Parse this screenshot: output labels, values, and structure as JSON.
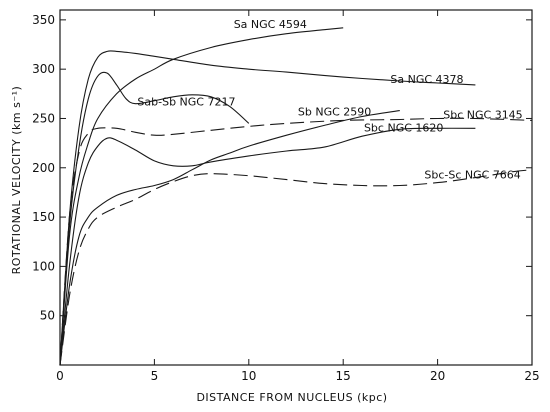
{
  "chart_data": {
    "type": "line",
    "title": "",
    "xlabel": "DISTANCE FROM NUCLEUS (kpc)",
    "ylabel": "ROTATIONAL VELOCITY (km s⁻¹)",
    "xlim": [
      0,
      25
    ],
    "ylim": [
      0,
      360
    ],
    "xticks": [
      0,
      5,
      10,
      15,
      20,
      25
    ],
    "yticks": [
      50,
      100,
      150,
      200,
      250,
      300,
      350
    ],
    "grid": false,
    "legend": "none",
    "series": [
      {
        "name": "Sa NGC 4594",
        "dashed": false,
        "label_text": "Sa NGC 4594",
        "label_at": [
          9.2,
          342
        ],
        "x": [
          0,
          0.5,
          1,
          1.5,
          2,
          3,
          4,
          5,
          6,
          8,
          10,
          12,
          14,
          15
        ],
        "y": [
          0,
          130,
          190,
          225,
          250,
          275,
          290,
          300,
          310,
          322,
          330,
          336,
          340,
          342
        ]
      },
      {
        "name": "Sa NGC 4378",
        "dashed": false,
        "label_text": "Sa NGC 4378",
        "label_at": [
          17.5,
          286
        ],
        "x": [
          0,
          0.5,
          1,
          1.5,
          2,
          2.5,
          3,
          4,
          5,
          6,
          8,
          10,
          12,
          15,
          18,
          20,
          22
        ],
        "y": [
          0,
          150,
          240,
          290,
          312,
          318,
          318,
          316,
          313,
          310,
          304,
          300,
          297,
          292,
          288,
          286,
          284
        ]
      },
      {
        "name": "Sab-Sb NGC 7217",
        "dashed": false,
        "label_text": "Sab-Sb NGC 7217",
        "label_at": [
          4.1,
          263
        ],
        "x": [
          0,
          0.5,
          1,
          1.5,
          2,
          2.5,
          3,
          3.5,
          4,
          5,
          6,
          7,
          8,
          9,
          10
        ],
        "y": [
          0,
          140,
          220,
          270,
          293,
          296,
          284,
          270,
          265,
          268,
          272,
          274,
          272,
          262,
          245
        ]
      },
      {
        "name": "Sb NGC 2590",
        "dashed": false,
        "label_text": "Sb NGC 2590",
        "label_at": [
          12.6,
          253
        ],
        "x": [
          0,
          0.5,
          1,
          1.5,
          2,
          3,
          4,
          5,
          6,
          7,
          8,
          9,
          10,
          12,
          14,
          16,
          18
        ],
        "y": [
          0,
          80,
          130,
          150,
          160,
          172,
          178,
          182,
          188,
          198,
          208,
          215,
          222,
          233,
          243,
          252,
          258
        ]
      },
      {
        "name": "Sbc NGC 3145",
        "dashed": true,
        "label_text": "Sbc NGC 3145",
        "label_at": [
          20.3,
          250
        ],
        "x": [
          0,
          0.5,
          1,
          1.5,
          2,
          3,
          4,
          5,
          6,
          8,
          10,
          12,
          15,
          18,
          20,
          22,
          25
        ],
        "y": [
          0,
          150,
          215,
          235,
          240,
          240,
          236,
          233,
          234,
          238,
          242,
          245,
          248,
          249,
          250,
          250,
          248
        ]
      },
      {
        "name": "Sbc NGC 1620",
        "dashed": false,
        "label_text": "Sbc NGC 1620",
        "label_at": [
          16.1,
          237
        ],
        "x": [
          0,
          0.5,
          1,
          1.5,
          2,
          2.5,
          3,
          4,
          5,
          6,
          7,
          8,
          10,
          12,
          14,
          16,
          18,
          20,
          22
        ],
        "y": [
          0,
          100,
          170,
          205,
          222,
          230,
          228,
          218,
          207,
          202,
          202,
          206,
          212,
          217,
          221,
          232,
          239,
          240,
          240
        ]
      },
      {
        "name": "Sbc-Sc NGC 7664",
        "dashed": true,
        "label_text": "Sbc-Sc NGC 7664",
        "label_at": [
          19.3,
          189
        ],
        "x": [
          0,
          0.5,
          1,
          1.5,
          2,
          3,
          4,
          5,
          6,
          7,
          8,
          10,
          12,
          14,
          16,
          18,
          20,
          22,
          24,
          25
        ],
        "y": [
          0,
          70,
          115,
          138,
          150,
          160,
          168,
          178,
          186,
          192,
          194,
          192,
          188,
          184,
          182,
          182,
          185,
          190,
          196,
          198
        ]
      }
    ]
  }
}
